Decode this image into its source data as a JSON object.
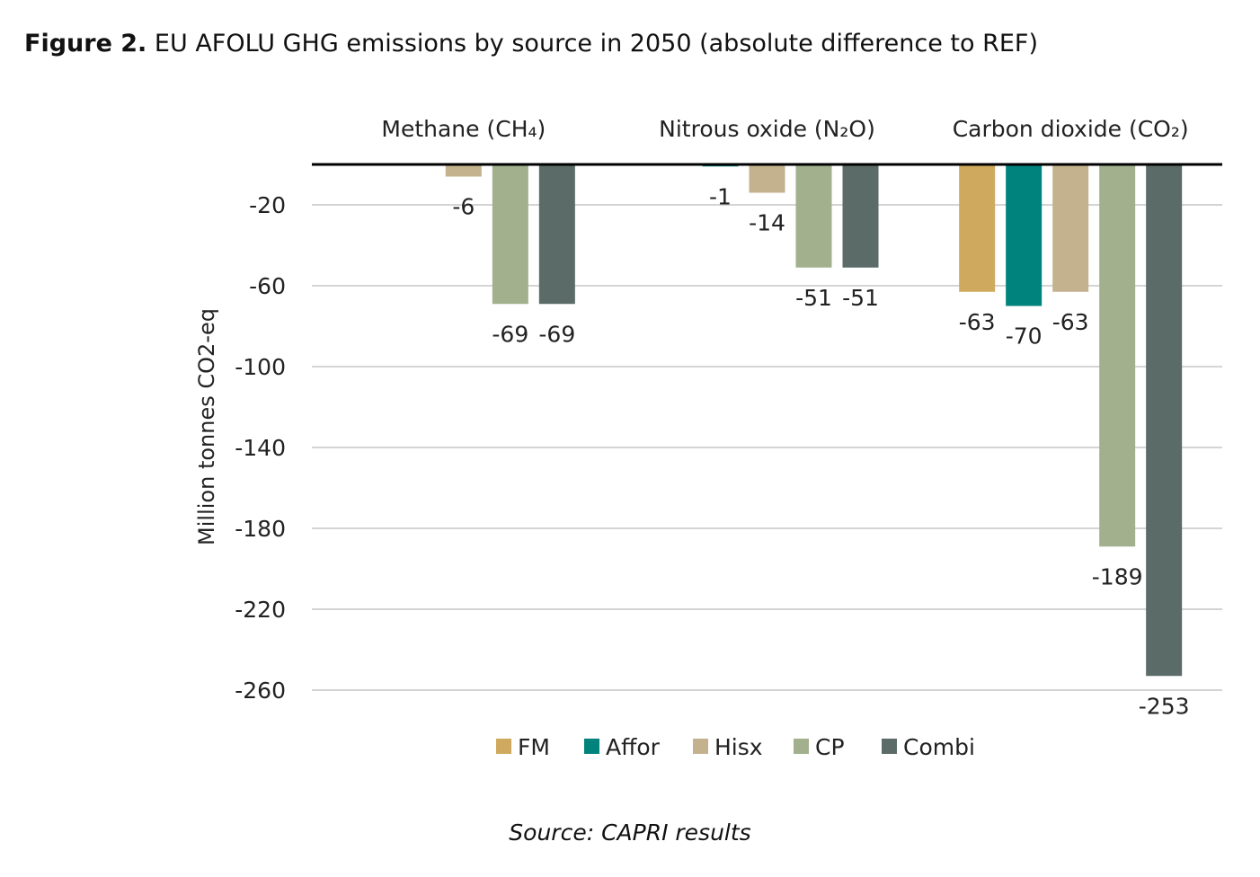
{
  "title_bold": "Figure 2.",
  "title_rest": " EU AFOLU GHG emissions by source in 2050 (absolute difference to REF)",
  "source": "Source: CAPRI results",
  "chart_data": {
    "type": "bar",
    "title": "Figure 2. EU AFOLU GHG emissions by source in 2050 (absolute difference to REF)",
    "ylabel": "Million tonnes CO2-eq",
    "xlabel": "",
    "categories": [
      "Methane (CH₄)",
      "Nitrous oxide (N₂O)",
      "Carbon dioxide (CO₂)"
    ],
    "category_axis_position": "top",
    "ylim": [
      -270,
      0
    ],
    "yticks": [
      -20,
      -60,
      -100,
      -140,
      -180,
      -220,
      -260
    ],
    "grid": true,
    "legend_position": "bottom",
    "series": [
      {
        "name": "FM",
        "color": "#cfa95e",
        "values": [
          null,
          null,
          -63
        ]
      },
      {
        "name": "Affor",
        "color": "#00837d",
        "values": [
          null,
          -1,
          -70
        ]
      },
      {
        "name": "Hisx",
        "color": "#c4b28f",
        "values": [
          -6,
          -14,
          -63
        ]
      },
      {
        "name": "CP",
        "color": "#a2b08e",
        "values": [
          -69,
          -51,
          -189
        ]
      },
      {
        "name": "Combi",
        "color": "#5a6b68",
        "values": [
          -69,
          -51,
          -253
        ]
      }
    ]
  }
}
